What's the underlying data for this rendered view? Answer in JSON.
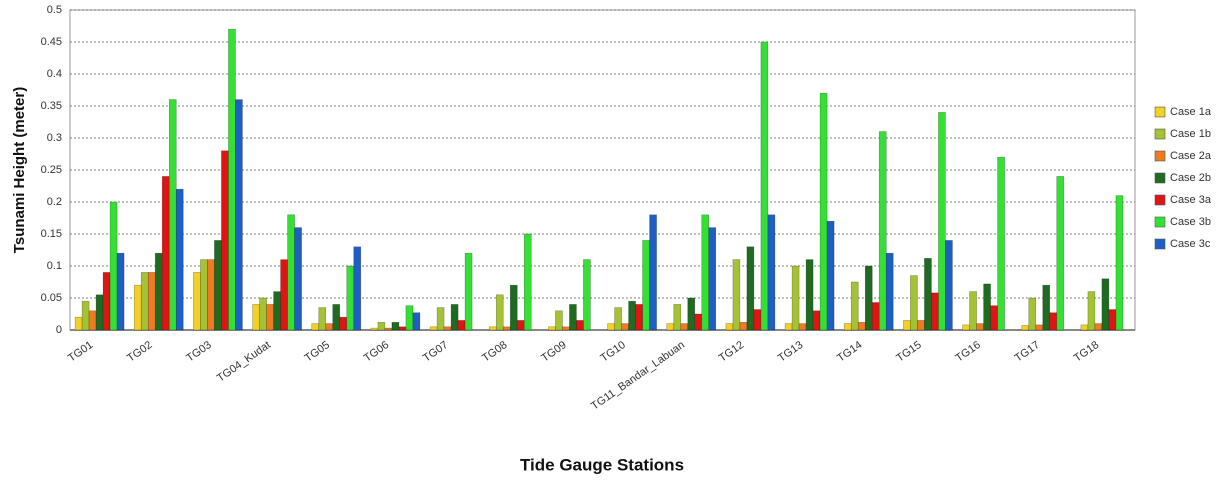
{
  "chart_data": {
    "type": "bar",
    "xlabel": "Tide Gauge Stations",
    "ylabel": "Tsunami Height (meter)",
    "categories": [
      "TG01",
      "TG02",
      "TG03",
      "TG04_Kudat",
      "TG05",
      "TG06",
      "TG07",
      "TG08",
      "TG09",
      "TG10",
      "TG11_Bandar_Labuan",
      "TG12",
      "TG13",
      "TG14",
      "TG15",
      "TG16",
      "TG17",
      "TG18"
    ],
    "series": [
      {
        "name": "Case 1a",
        "color": "#f2d024",
        "values": [
          0.02,
          0.07,
          0.09,
          0.04,
          0.01,
          0.003,
          0.005,
          0.005,
          0.005,
          0.01,
          0.01,
          0.01,
          0.01,
          0.01,
          0.015,
          0.008,
          0.007,
          0.008
        ]
      },
      {
        "name": "Case 1b",
        "color": "#a4c234",
        "values": [
          0.045,
          0.09,
          0.11,
          0.05,
          0.035,
          0.012,
          0.035,
          0.055,
          0.03,
          0.035,
          0.04,
          0.11,
          0.1,
          0.075,
          0.085,
          0.06,
          0.05,
          0.06
        ]
      },
      {
        "name": "Case 2a",
        "color": "#ee7a22",
        "values": [
          0.03,
          0.09,
          0.11,
          0.04,
          0.01,
          0.003,
          0.005,
          0.005,
          0.005,
          0.01,
          0.01,
          0.012,
          0.01,
          0.012,
          0.015,
          0.01,
          0.008,
          0.01
        ]
      },
      {
        "name": "Case 2b",
        "color": "#1f6b22",
        "values": [
          0.055,
          0.12,
          0.14,
          0.06,
          0.04,
          0.012,
          0.04,
          0.07,
          0.04,
          0.045,
          0.05,
          0.13,
          0.11,
          0.1,
          0.112,
          0.072,
          0.07,
          0.08
        ]
      },
      {
        "name": "Case 3a",
        "color": "#e01414",
        "values": [
          0.09,
          0.24,
          0.28,
          0.11,
          0.02,
          0.005,
          0.015,
          0.015,
          0.015,
          0.04,
          0.025,
          0.032,
          0.03,
          0.043,
          0.058,
          0.038,
          0.027,
          0.032
        ]
      },
      {
        "name": "Case 3b",
        "color": "#33e033",
        "values": [
          0.2,
          0.36,
          0.47,
          0.18,
          0.1,
          0.038,
          0.12,
          0.15,
          0.11,
          0.14,
          0.18,
          0.45,
          0.37,
          0.31,
          0.34,
          0.27,
          0.24,
          0.21
        ]
      },
      {
        "name": "Case 3c",
        "color": "#1f5fc4",
        "values": [
          0.12,
          0.22,
          0.36,
          0.16,
          0.13,
          0.027,
          0,
          0,
          0,
          0.18,
          0.16,
          0.18,
          0.17,
          0.12,
          0.14,
          0,
          0,
          0
        ]
      }
    ],
    "ylim": [
      0,
      0.5
    ],
    "yticks": [
      0,
      0.05,
      0.1,
      0.15,
      0.2,
      0.25,
      0.3,
      0.35,
      0.4,
      0.45,
      0.5
    ],
    "grid": true,
    "legend": "right"
  }
}
